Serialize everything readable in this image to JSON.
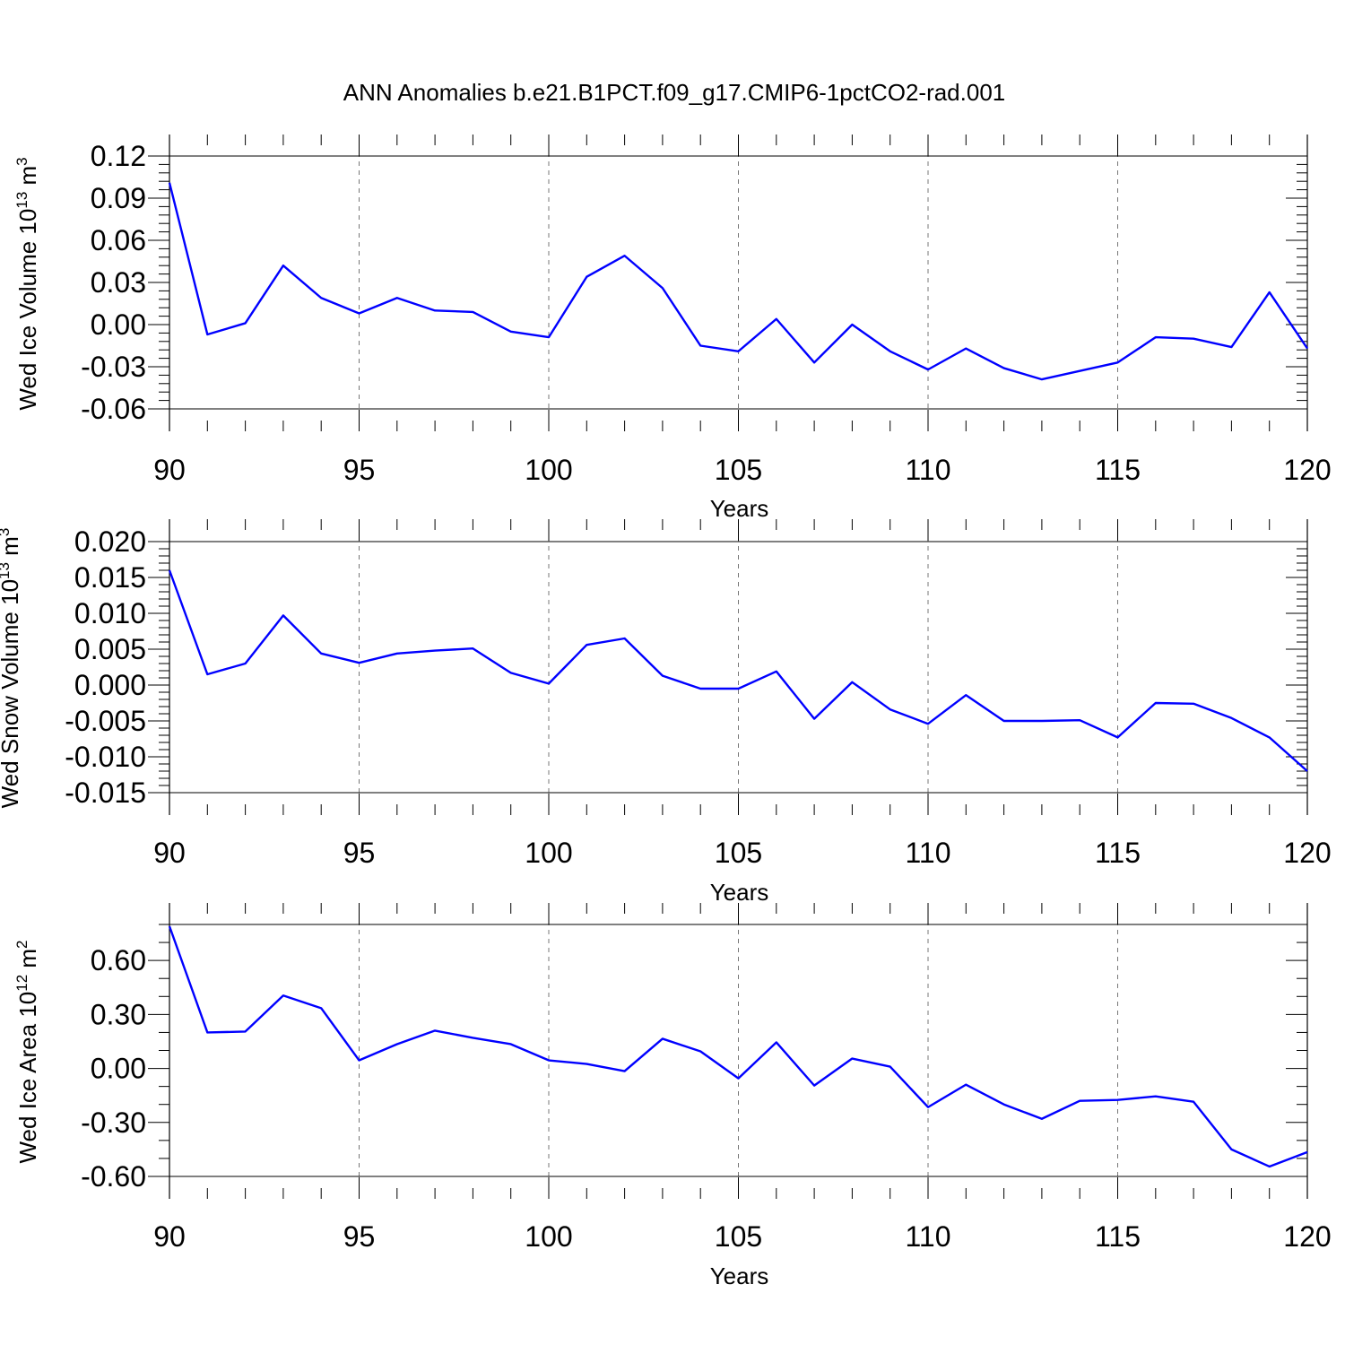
{
  "figure": {
    "title": "ANN Anomalies b.e21.B1PCT.f09_g17.CMIP6-1pctCO2-rad.001",
    "line_color": "#0000ff"
  },
  "chart_data": [
    {
      "type": "line",
      "ylabel": "Wed Ice Volume 10",
      "ylabel_exp": "13",
      "ylabel_unit": " m",
      "ylabel_unit_exp": "3",
      "xlabel": "Years",
      "xlim": [
        90,
        120
      ],
      "ylim": [
        -0.06,
        0.12
      ],
      "xticks": [
        90,
        95,
        100,
        105,
        110,
        115,
        120
      ],
      "xtick_labels": [
        "90",
        "95",
        "100",
        "105",
        "110",
        "115",
        "120"
      ],
      "yticks": [
        -0.06,
        -0.03,
        0.0,
        0.03,
        0.06,
        0.09,
        0.12
      ],
      "ytick_labels": [
        "-0.06",
        "-0.03",
        "0.00",
        "0.03",
        "0.06",
        "0.09",
        "0.12"
      ],
      "yminor_step": 0.006,
      "grid_x": true,
      "x": [
        90,
        91,
        92,
        93,
        94,
        95,
        96,
        97,
        98,
        99,
        100,
        101,
        102,
        103,
        104,
        105,
        106,
        107,
        108,
        109,
        110,
        111,
        112,
        113,
        114,
        115,
        116,
        117,
        118,
        119,
        120
      ],
      "series": [
        {
          "values": [
            0.101,
            -0.007,
            0.001,
            0.042,
            0.019,
            0.008,
            0.019,
            0.01,
            0.009,
            -0.005,
            -0.009,
            0.034,
            0.049,
            0.026,
            -0.015,
            -0.019,
            0.004,
            -0.027,
            0.0,
            -0.019,
            -0.032,
            -0.017,
            -0.031,
            -0.039,
            -0.033,
            -0.027,
            -0.009,
            -0.01,
            -0.016,
            0.023,
            -0.017
          ]
        }
      ]
    },
    {
      "type": "line",
      "ylabel": "Wed Snow Volume 10",
      "ylabel_exp": "13",
      "ylabel_unit": " m",
      "ylabel_unit_exp": "3",
      "xlabel": "Years",
      "xlim": [
        90,
        120
      ],
      "ylim": [
        -0.015,
        0.02
      ],
      "xticks": [
        90,
        95,
        100,
        105,
        110,
        115,
        120
      ],
      "xtick_labels": [
        "90",
        "95",
        "100",
        "105",
        "110",
        "115",
        "120"
      ],
      "yticks": [
        -0.015,
        -0.01,
        -0.005,
        0.0,
        0.005,
        0.01,
        0.015,
        0.02
      ],
      "ytick_labels": [
        "-0.015",
        "-0.010",
        "-0.005",
        "0.000",
        "0.005",
        "0.010",
        "0.015",
        "0.020"
      ],
      "yminor_step": 0.001,
      "grid_x": true,
      "x": [
        90,
        91,
        92,
        93,
        94,
        95,
        96,
        97,
        98,
        99,
        100,
        101,
        102,
        103,
        104,
        105,
        106,
        107,
        108,
        109,
        110,
        111,
        112,
        113,
        114,
        115,
        116,
        117,
        118,
        119,
        120
      ],
      "series": [
        {
          "values": [
            0.016,
            0.0015,
            0.003,
            0.0097,
            0.0044,
            0.0031,
            0.0044,
            0.0048,
            0.0051,
            0.0017,
            0.0002,
            0.0056,
            0.0065,
            0.0013,
            -0.0005,
            -0.0005,
            0.0019,
            -0.0047,
            0.0004,
            -0.0034,
            -0.0054,
            -0.0014,
            -0.005,
            -0.005,
            -0.0049,
            -0.0073,
            -0.0025,
            -0.0026,
            -0.0046,
            -0.0073,
            -0.012
          ]
        }
      ]
    },
    {
      "type": "line",
      "ylabel": "Wed Ice Area 10",
      "ylabel_exp": "12",
      "ylabel_unit": " m",
      "ylabel_unit_exp": "2",
      "xlabel": "Years",
      "xlim": [
        90,
        120
      ],
      "ylim": [
        -0.6,
        0.8
      ],
      "xticks": [
        90,
        95,
        100,
        105,
        110,
        115,
        120
      ],
      "xtick_labels": [
        "90",
        "95",
        "100",
        "105",
        "110",
        "115",
        "120"
      ],
      "yticks": [
        -0.6,
        -0.3,
        0.0,
        0.3,
        0.6
      ],
      "ytick_labels": [
        "-0.60",
        "-0.30",
        "0.00",
        "0.30",
        "0.60"
      ],
      "yminor_step": 0.1,
      "grid_x": true,
      "x": [
        90,
        91,
        92,
        93,
        94,
        95,
        96,
        97,
        98,
        99,
        100,
        101,
        102,
        103,
        104,
        105,
        106,
        107,
        108,
        109,
        110,
        111,
        112,
        113,
        114,
        115,
        116,
        117,
        118,
        119,
        120
      ],
      "series": [
        {
          "values": [
            0.79,
            0.2,
            0.205,
            0.405,
            0.335,
            0.045,
            0.135,
            0.21,
            0.17,
            0.135,
            0.045,
            0.025,
            -0.015,
            0.165,
            0.095,
            -0.055,
            0.145,
            -0.095,
            0.055,
            0.01,
            -0.215,
            -0.09,
            -0.2,
            -0.28,
            -0.18,
            -0.175,
            -0.155,
            -0.185,
            -0.45,
            -0.545,
            -0.465
          ]
        }
      ]
    }
  ]
}
